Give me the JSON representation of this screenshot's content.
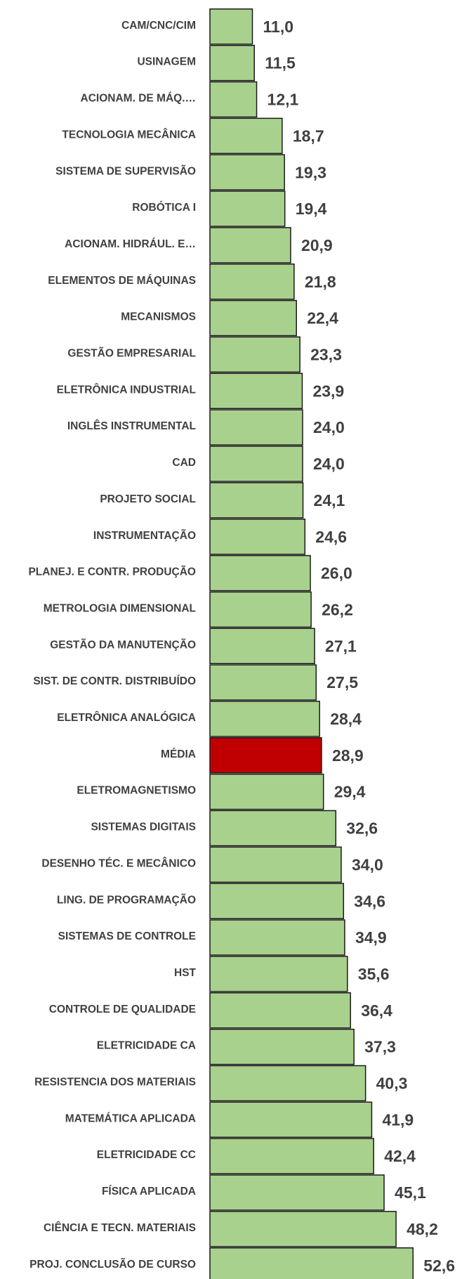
{
  "chart_data": {
    "type": "barh",
    "categories": [
      "CAM/CNC/CIM",
      "USINAGEM",
      "ACIONAM. DE MÁQ.…",
      "TECNOLOGIA MECÂNICA",
      "SISTEMA DE SUPERVISÃO",
      "ROBÓTICA I",
      "ACIONAM. HIDRÁUL. E…",
      "ELEMENTOS DE MÁQUINAS",
      "MECANISMOS",
      "GESTÃO EMPRESARIAL",
      "ELETRÔNICA INDUSTRIAL",
      "INGLÊS INSTRUMENTAL",
      "CAD",
      "PROJETO SOCIAL",
      "INSTRUMENTAÇÃO",
      "PLANEJ. E CONTR. PRODUÇÃO",
      "METROLOGIA DIMENSIONAL",
      "GESTÃO DA MANUTENÇÃO",
      "SIST. DE CONTR. DISTRIBUÍDO",
      "ELETRÔNICA ANALÓGICA",
      "MÉDIA",
      "ELETROMAGNETISMO",
      "SISTEMAS DIGITAIS",
      "DESENHO TÉC. E MECÂNICO",
      "LING. DE PROGRAMAÇÃO",
      "SISTEMAS DE CONTROLE",
      "HST",
      "CONTROLE DE QUALIDADE",
      "ELETRICIDADE CA",
      "RESISTENCIA DOS MATERIAIS",
      "MATEMÁTICA APLICADA",
      "ELETRICIDADE CC",
      "FÍSICA APLICADA",
      "CIÊNCIA E TECN. MATERIAIS",
      "PROJ. CONCLUSÃO DE CURSO"
    ],
    "values": [
      11.0,
      11.5,
      12.1,
      18.7,
      19.3,
      19.4,
      20.9,
      21.8,
      22.4,
      23.3,
      23.9,
      24.0,
      24.0,
      24.1,
      24.6,
      26.0,
      26.2,
      27.1,
      27.5,
      28.4,
      28.9,
      29.4,
      32.6,
      34.0,
      34.6,
      34.9,
      35.6,
      36.4,
      37.3,
      40.3,
      41.9,
      42.4,
      45.1,
      48.2,
      52.6
    ],
    "value_labels": [
      "11,0",
      "11,5",
      "12,1",
      "18,7",
      "19,3",
      "19,4",
      "20,9",
      "21,8",
      "22,4",
      "23,3",
      "23,9",
      "24,0",
      "24,0",
      "24,1",
      "24,6",
      "26,0",
      "26,2",
      "27,1",
      "27,5",
      "28,4",
      "28,9",
      "29,4",
      "32,6",
      "34,0",
      "34,6",
      "34,9",
      "35,6",
      "36,4",
      "37,3",
      "40,3",
      "41,9",
      "42,4",
      "45,1",
      "48,2",
      "52,6"
    ],
    "colors": [
      "#a9d18e",
      "#a9d18e",
      "#a9d18e",
      "#a9d18e",
      "#a9d18e",
      "#a9d18e",
      "#a9d18e",
      "#a9d18e",
      "#a9d18e",
      "#a9d18e",
      "#a9d18e",
      "#a9d18e",
      "#a9d18e",
      "#a9d18e",
      "#a9d18e",
      "#a9d18e",
      "#a9d18e",
      "#a9d18e",
      "#a9d18e",
      "#a9d18e",
      "#c00000",
      "#a9d18e",
      "#a9d18e",
      "#a9d18e",
      "#a9d18e",
      "#a9d18e",
      "#a9d18e",
      "#a9d18e",
      "#a9d18e",
      "#a9d18e",
      "#a9d18e",
      "#a9d18e",
      "#a9d18e",
      "#a9d18e",
      "#a9d18e"
    ],
    "xlim": [
      0,
      60
    ]
  }
}
